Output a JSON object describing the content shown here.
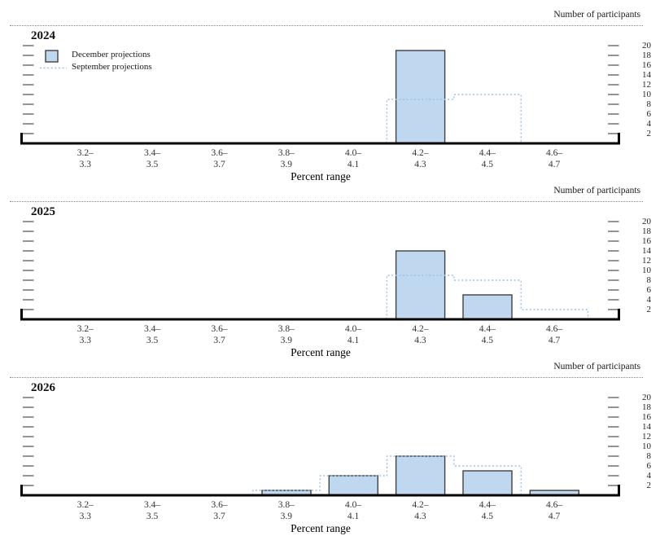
{
  "figure": {
    "right_axis_title": "Number of participants",
    "x_axis_title": "Percent range",
    "legend": {
      "december": "December projections",
      "september": "September projections"
    },
    "colors": {
      "bar_fill": "#BFD8F0",
      "bar_border": "#404040",
      "dashed_outline": "#9CC2E5",
      "axis": "#000000",
      "tick": "#4D4D4D",
      "rule": "#8A8A8A"
    }
  },
  "chart_data": [
    {
      "type": "bar",
      "title": "2024",
      "categories": [
        "3.2–3.3",
        "3.4–3.5",
        "3.6–3.7",
        "3.8–3.9",
        "4.0–4.1",
        "4.2–4.3",
        "4.4–4.5",
        "4.6–4.7"
      ],
      "series": [
        {
          "name": "December projections",
          "style": "filled-bar",
          "values": [
            0,
            0,
            0,
            0,
            0,
            19,
            0,
            0
          ]
        },
        {
          "name": "September projections",
          "style": "dashed-outline",
          "values": [
            0,
            0,
            0,
            0,
            0,
            9,
            10,
            0
          ]
        }
      ],
      "xlabel": "Percent range",
      "ylabel": "Number of participants",
      "ylim": [
        0,
        24
      ],
      "yticks": [
        2,
        4,
        6,
        8,
        10,
        12,
        14,
        16,
        18,
        20
      ],
      "grid": false,
      "legend_position": "top-left"
    },
    {
      "type": "bar",
      "title": "2025",
      "categories": [
        "3.2–3.3",
        "3.4–3.5",
        "3.6–3.7",
        "3.8–3.9",
        "4.0–4.1",
        "4.2–4.3",
        "4.4–4.5",
        "4.6–4.7"
      ],
      "series": [
        {
          "name": "December projections",
          "style": "filled-bar",
          "values": [
            0,
            0,
            0,
            0,
            0,
            14,
            5,
            0
          ]
        },
        {
          "name": "September projections",
          "style": "dashed-outline",
          "values": [
            0,
            0,
            0,
            0,
            0,
            9,
            8,
            2
          ]
        }
      ],
      "xlabel": "Percent range",
      "ylabel": "Number of participants",
      "ylim": [
        0,
        24
      ],
      "yticks": [
        2,
        4,
        6,
        8,
        10,
        12,
        14,
        16,
        18,
        20
      ],
      "grid": false,
      "legend_position": "none"
    },
    {
      "type": "bar",
      "title": "2026",
      "categories": [
        "3.2–3.3",
        "3.4–3.5",
        "3.6–3.7",
        "3.8–3.9",
        "4.0–4.1",
        "4.2–4.3",
        "4.4–4.5",
        "4.6–4.7"
      ],
      "series": [
        {
          "name": "December projections",
          "style": "filled-bar",
          "values": [
            0,
            0,
            0,
            1,
            4,
            8,
            5,
            1
          ]
        },
        {
          "name": "September projections",
          "style": "dashed-outline",
          "values": [
            0,
            0,
            0,
            1,
            4,
            8,
            6,
            0
          ]
        }
      ],
      "xlabel": "Percent range",
      "ylabel": "Number of participants",
      "ylim": [
        0,
        24
      ],
      "yticks": [
        2,
        4,
        6,
        8,
        10,
        12,
        14,
        16,
        18,
        20
      ],
      "grid": false,
      "legend_position": "none"
    }
  ]
}
